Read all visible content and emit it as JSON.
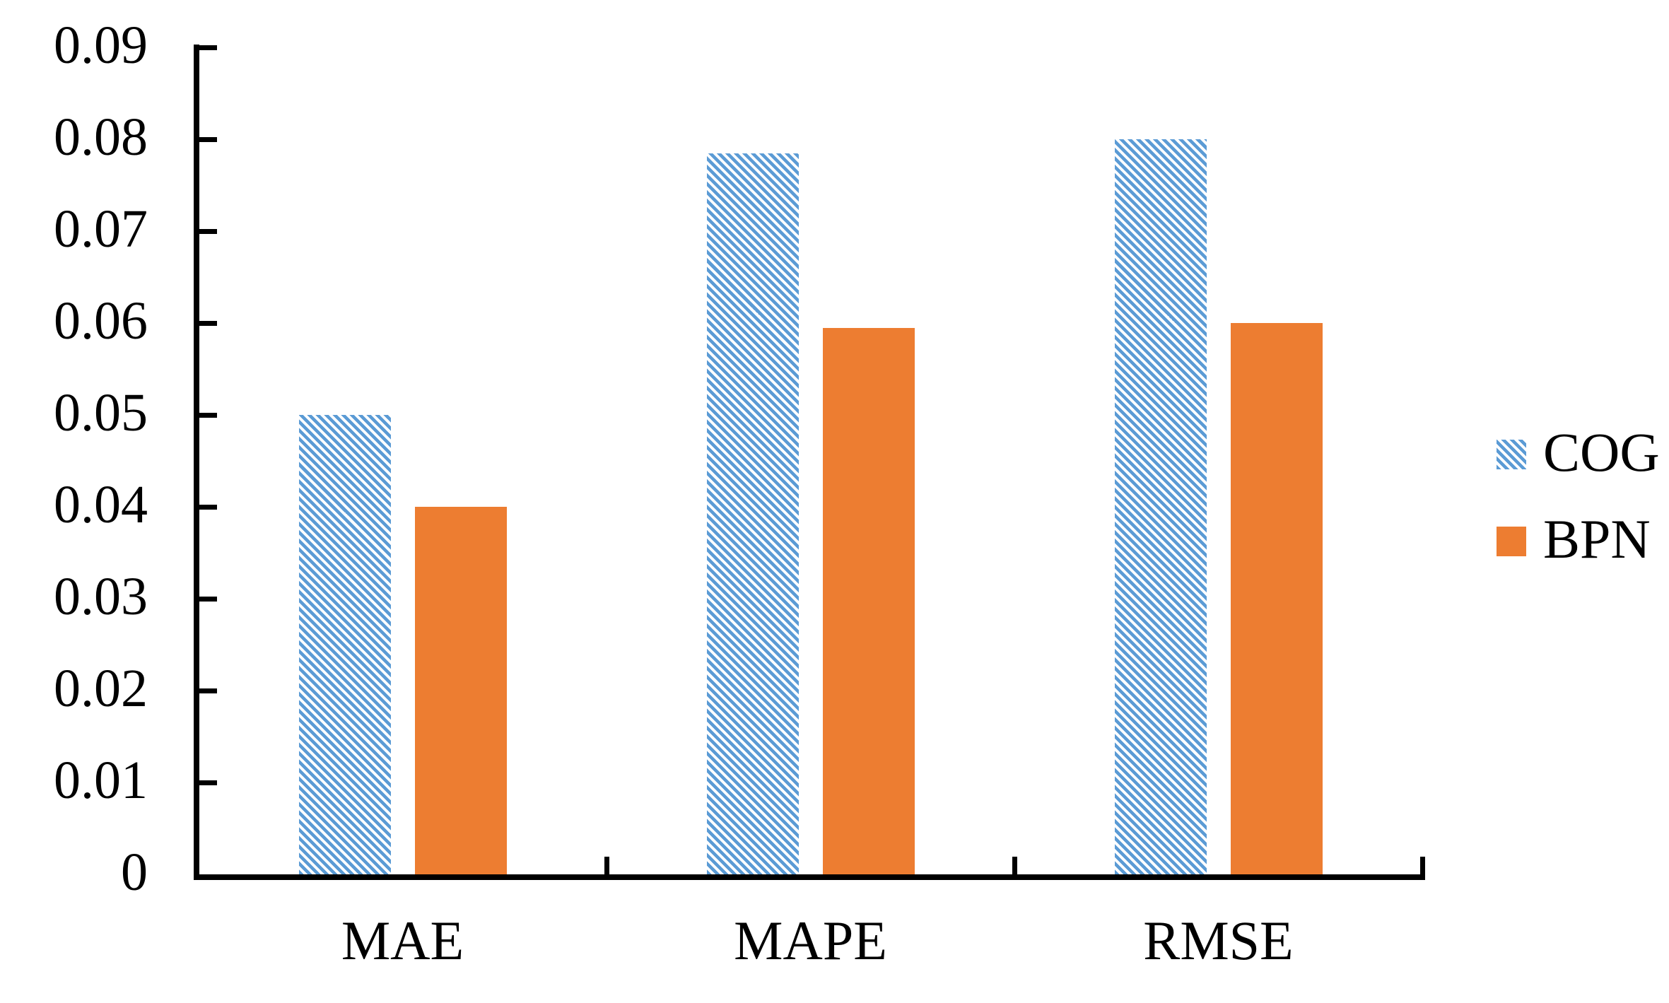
{
  "chart_data": {
    "type": "bar",
    "title": "",
    "categories": [
      "MAE",
      "MAPE",
      "RMSE"
    ],
    "series": [
      {
        "name": "COG",
        "values": [
          0.05,
          0.0785,
          0.08
        ],
        "color": "#5B9BD5",
        "fill_style": "diagonal-hatch"
      },
      {
        "name": "BPN",
        "values": [
          0.04,
          0.0595,
          0.06
        ],
        "color": "#ED7D31",
        "fill_style": "solid"
      }
    ],
    "xlabel": "",
    "ylabel": "",
    "ylim": [
      0,
      0.09
    ],
    "y_tick_step": 0.01,
    "y_tick_labels": [
      "0",
      "0.01",
      "0.02",
      "0.03",
      "0.04",
      "0.05",
      "0.06",
      "0.07",
      "0.08",
      "0.09"
    ],
    "grid": false,
    "legend_position": "right",
    "axis_color": "#000000",
    "text_color": "#000000",
    "background_color": "#FFFFFF"
  }
}
